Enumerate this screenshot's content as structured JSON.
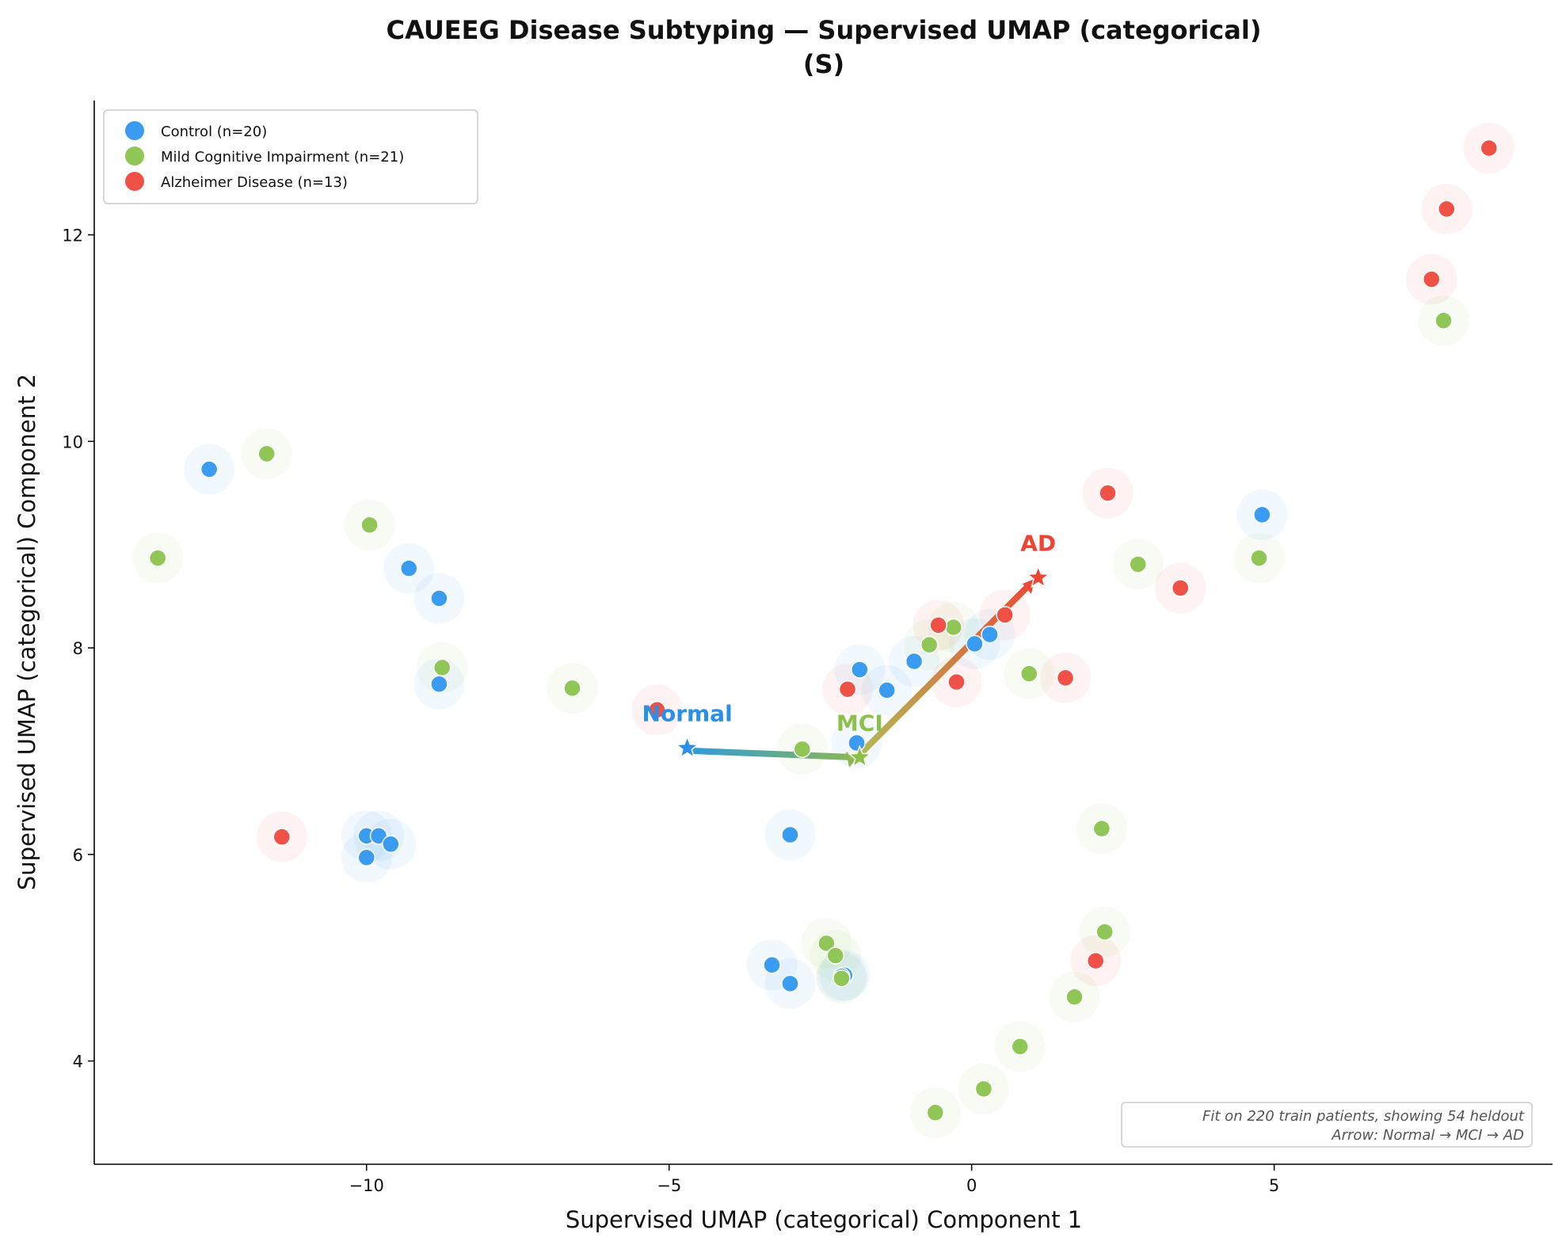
{
  "chart_data": {
    "type": "scatter",
    "title_line1": "CAUEEG Disease Subtyping — Supervised UMAP (categorical)",
    "title_line2": "(S)",
    "xlabel": "Supervised UMAP (categorical) Component 1",
    "ylabel": "Supervised UMAP (categorical) Component 2",
    "xlim": [
      -14.5,
      9.6
    ],
    "ylim": [
      3.0,
      13.3
    ],
    "x_ticks": [
      -10,
      -5,
      0,
      5
    ],
    "x_tick_labels": [
      "−10",
      "−5",
      "0",
      "5"
    ],
    "y_ticks": [
      4,
      6,
      8,
      10,
      12
    ],
    "y_tick_labels": [
      "4",
      "6",
      "8",
      "10",
      "12"
    ],
    "grid": false,
    "legend_position": "top-left",
    "series": [
      {
        "name": "Control (n=20)",
        "color": "#3a9cf0",
        "points": [
          [
            -12.6,
            9.73
          ],
          [
            -9.3,
            8.77
          ],
          [
            -8.8,
            8.48
          ],
          [
            -8.8,
            7.65
          ],
          [
            -10.0,
            6.18
          ],
          [
            -9.8,
            6.18
          ],
          [
            -9.6,
            6.1
          ],
          [
            -10.0,
            5.97
          ],
          [
            -3.0,
            6.19
          ],
          [
            -3.3,
            4.93
          ],
          [
            -3.0,
            4.75
          ],
          [
            -2.1,
            4.83
          ],
          [
            -2.15,
            4.82
          ],
          [
            -1.9,
            7.08
          ],
          [
            -1.85,
            7.79
          ],
          [
            -1.4,
            7.59
          ],
          [
            -0.95,
            7.87
          ],
          [
            0.05,
            8.04
          ],
          [
            0.3,
            8.13
          ],
          [
            4.8,
            9.29
          ]
        ]
      },
      {
        "name": "Mild Cognitive Impairment (n=21)",
        "color": "#8fc656",
        "points": [
          [
            -11.65,
            9.88
          ],
          [
            -13.45,
            8.87
          ],
          [
            -9.95,
            9.19
          ],
          [
            -8.75,
            7.81
          ],
          [
            -6.6,
            7.61
          ],
          [
            -2.8,
            7.02
          ],
          [
            -2.4,
            5.14
          ],
          [
            -2.25,
            5.02
          ],
          [
            -2.15,
            4.8
          ],
          [
            -0.7,
            8.03
          ],
          [
            -0.3,
            8.2
          ],
          [
            0.95,
            7.75
          ],
          [
            2.75,
            8.81
          ],
          [
            4.75,
            8.87
          ],
          [
            2.15,
            6.25
          ],
          [
            2.2,
            5.25
          ],
          [
            1.7,
            4.62
          ],
          [
            0.8,
            4.14
          ],
          [
            0.2,
            3.73
          ],
          [
            -0.6,
            3.5
          ],
          [
            7.8,
            11.17
          ]
        ]
      },
      {
        "name": "Alzheimer Disease (n=13)",
        "color": "#ef5146",
        "points": [
          [
            -11.4,
            6.17
          ],
          [
            -5.2,
            7.4
          ],
          [
            -2.05,
            7.6
          ],
          [
            -0.55,
            8.22
          ],
          [
            -0.25,
            7.67
          ],
          [
            0.55,
            8.32
          ],
          [
            1.55,
            7.71
          ],
          [
            2.25,
            9.5
          ],
          [
            3.45,
            8.58
          ],
          [
            2.05,
            4.97
          ],
          [
            7.6,
            11.57
          ],
          [
            7.85,
            12.25
          ],
          [
            8.55,
            12.84
          ]
        ]
      }
    ],
    "centroids": [
      {
        "label": "Normal",
        "x": -4.7,
        "y": 7.03,
        "color": "#2b8ee8"
      },
      {
        "label": "MCI",
        "x": -1.85,
        "y": 6.94,
        "color": "#8cc04b"
      },
      {
        "label": "AD",
        "x": 1.1,
        "y": 8.68,
        "color": "#ee4433"
      }
    ],
    "annotation_line1": "Fit on 220 train patients, showing 54 heldout",
    "annotation_line2": "Arrow: Normal → MCI → AD"
  }
}
